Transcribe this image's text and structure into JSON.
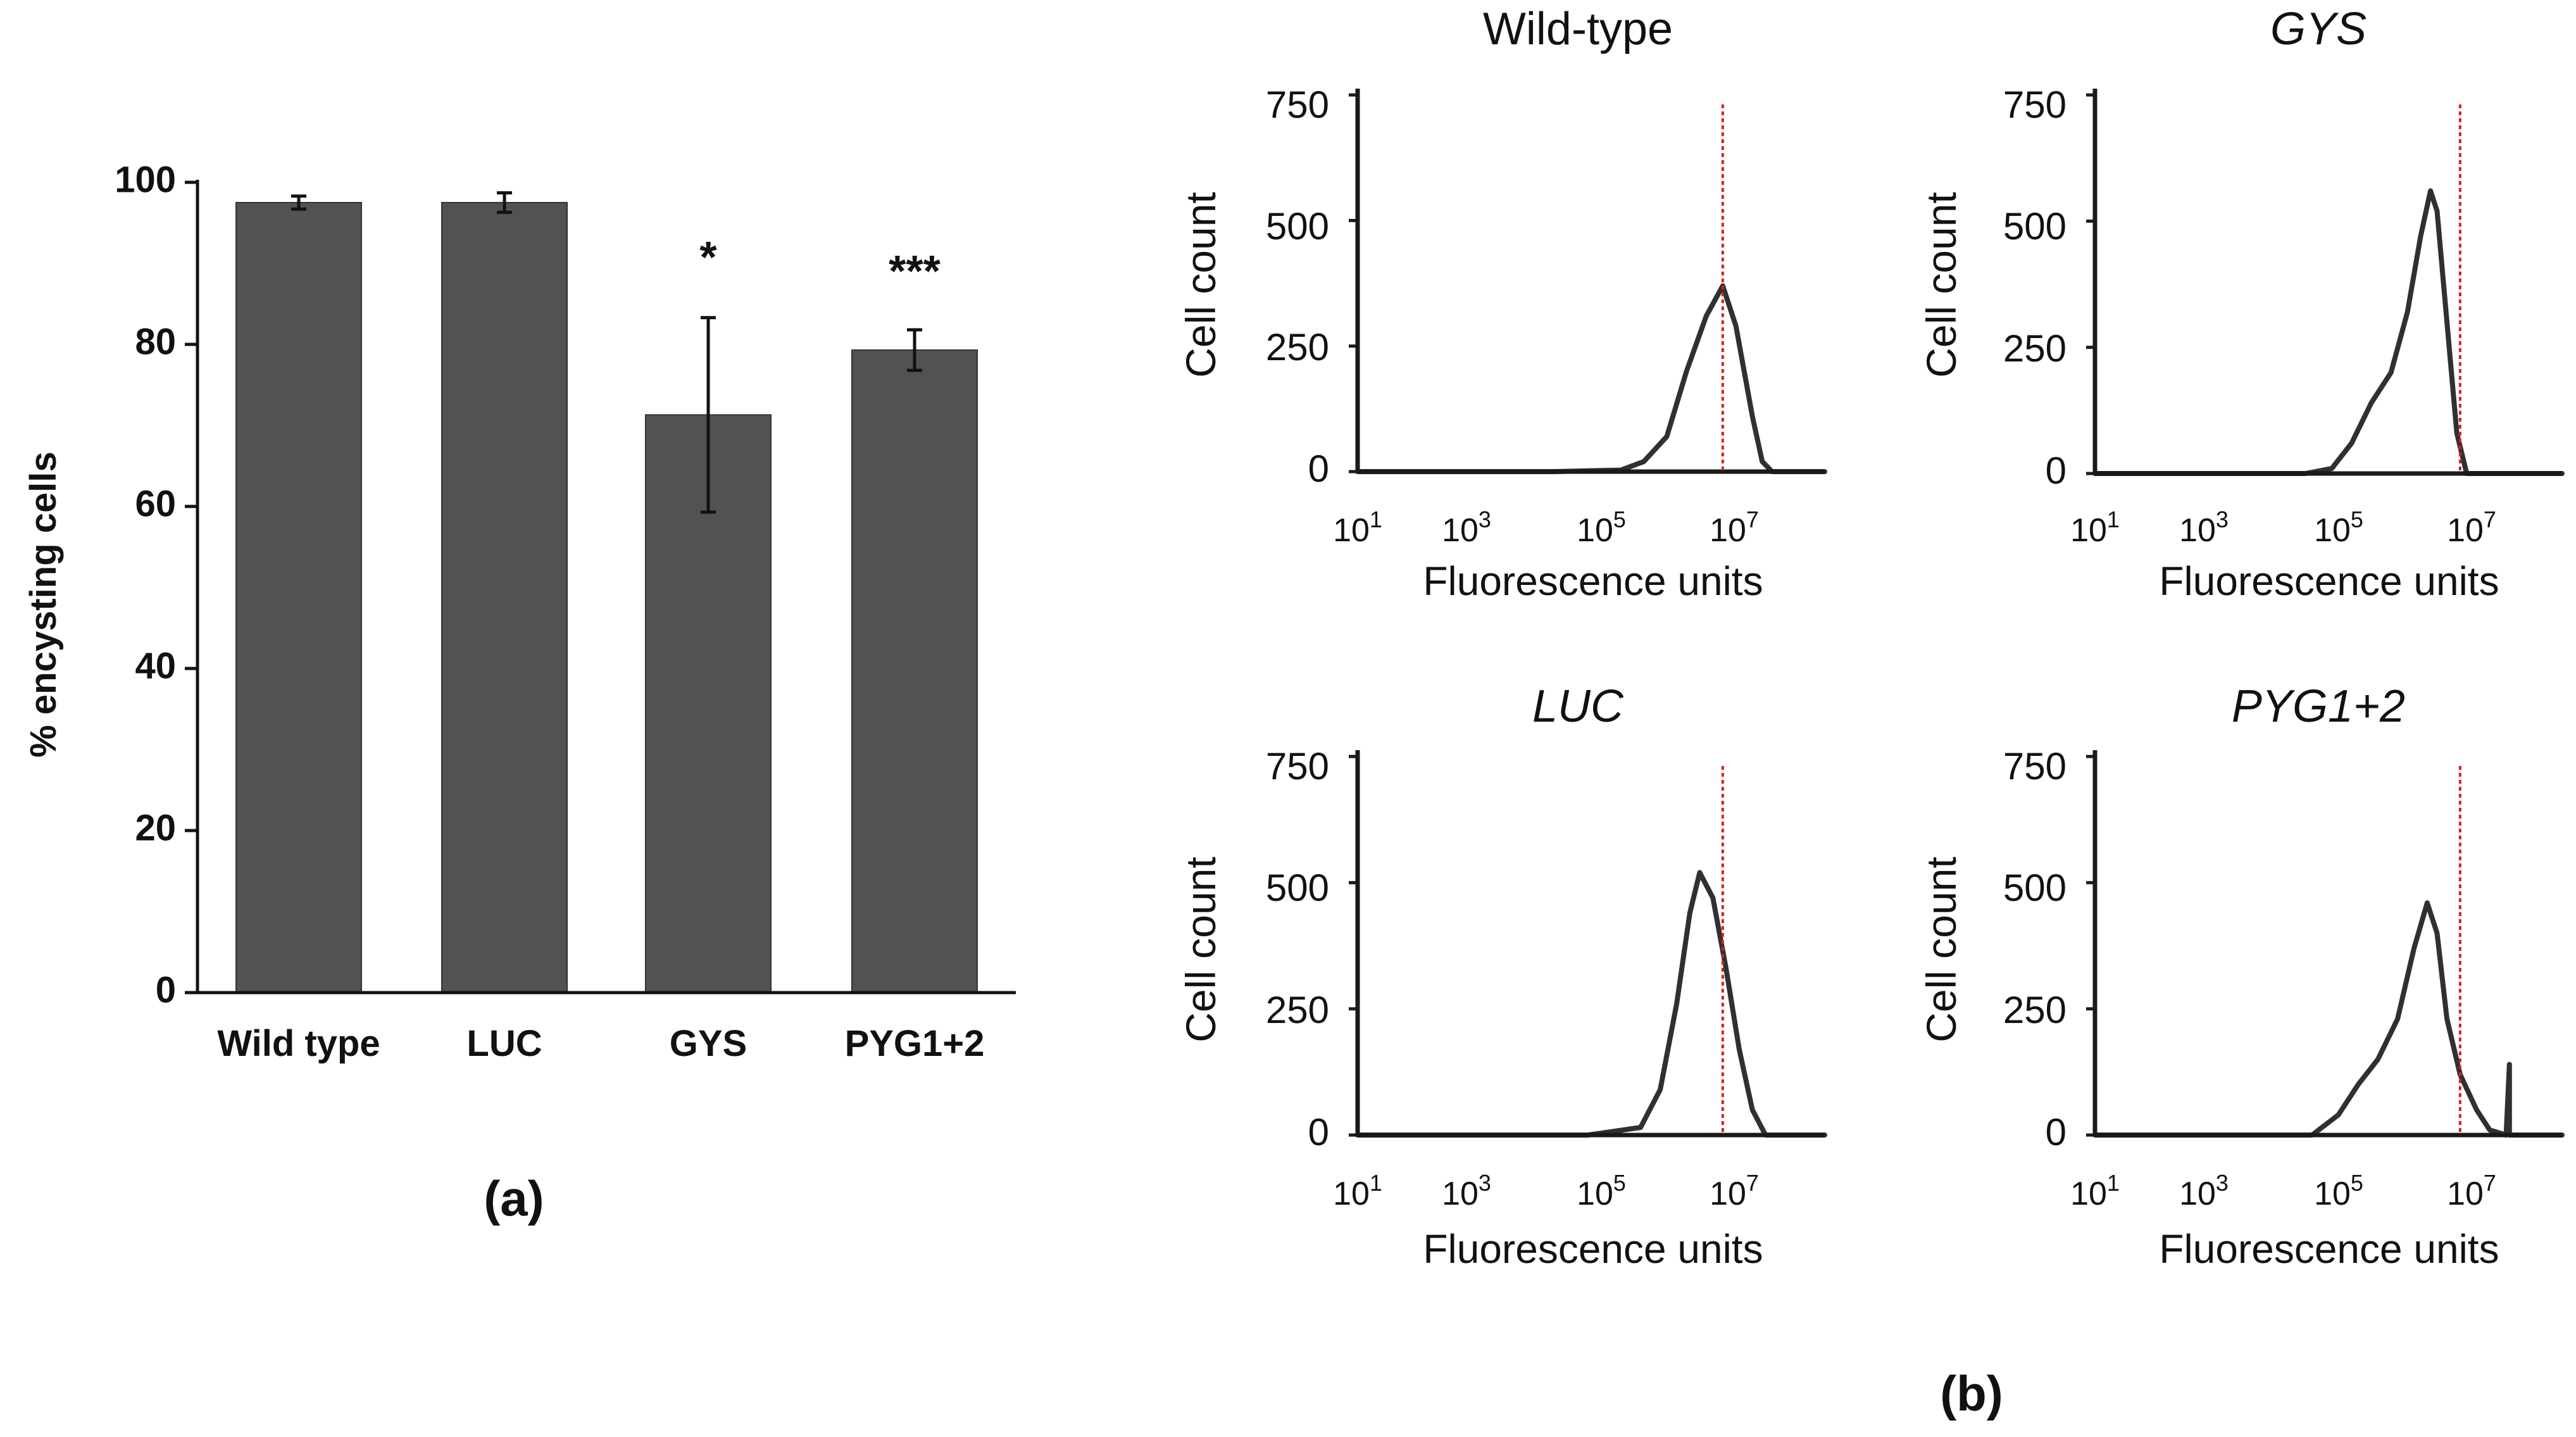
{
  "colors": {
    "bar_fill": "#515254",
    "ink": "#111111",
    "threshold": "#d62020",
    "histogram": "#1a1a1a"
  },
  "panel_a": {
    "label": "(a)",
    "chart_data": {
      "type": "bar",
      "title": "",
      "xlabel": "",
      "ylabel": "% encysting cells",
      "ylim": [
        0,
        100
      ],
      "yticks": [
        0,
        20,
        40,
        60,
        80,
        100
      ],
      "ytick_labels": [
        "0",
        "20",
        "40",
        "60",
        "80",
        "100"
      ],
      "categories": [
        "Wild type",
        "LUC",
        "GYS",
        "PYG1+2"
      ],
      "values": [
        97.5,
        97.5,
        71.3,
        79.3
      ],
      "errors": [
        0.8,
        1.2,
        12.0,
        2.5
      ],
      "significance": [
        "",
        "",
        "*",
        "***"
      ]
    }
  },
  "panel_b": {
    "label": "(b)",
    "chart_data": [
      {
        "type": "line",
        "title": "Wild-type",
        "title_italic": false,
        "xlabel": "Fluorescence units",
        "ylabel": "Cell count",
        "xscale": "log10",
        "xlim_log10": [
          1,
          8.1
        ],
        "ylim": [
          0,
          750
        ],
        "yticks": [
          0,
          250,
          500,
          750
        ],
        "ytick_labels": [
          "0",
          "250",
          "500",
          "750"
        ],
        "xtick_exponents": [
          "1",
          "3",
          "5",
          "7"
        ],
        "xtick_base": "10",
        "threshold_log10": 6.55,
        "x_log10": [
          1.0,
          3.0,
          4.0,
          5.0,
          5.35,
          5.7,
          6.0,
          6.3,
          6.55,
          6.75,
          7.0,
          7.15,
          7.3,
          8.1
        ],
        "y": [
          0,
          0,
          0,
          3,
          20,
          70,
          200,
          310,
          370,
          290,
          110,
          20,
          0,
          0
        ]
      },
      {
        "type": "line",
        "title": "GYS",
        "title_italic": true,
        "xlabel": "Fluorescence units",
        "ylabel": "Cell count",
        "xscale": "log10",
        "xlim_log10": [
          1,
          8.1
        ],
        "ylim": [
          0,
          750
        ],
        "yticks": [
          0,
          250,
          500,
          750
        ],
        "ytick_labels": [
          "0",
          "250",
          "500",
          "750"
        ],
        "xtick_exponents": [
          "1",
          "3",
          "5",
          "7"
        ],
        "xtick_base": "10",
        "threshold_log10": 6.55,
        "x_log10": [
          1.0,
          3.0,
          4.2,
          4.6,
          4.9,
          5.2,
          5.5,
          5.75,
          5.95,
          6.1,
          6.2,
          6.35,
          6.5,
          6.65,
          8.1
        ],
        "y": [
          0,
          0,
          0,
          10,
          60,
          140,
          200,
          320,
          470,
          560,
          520,
          300,
          80,
          0,
          0
        ]
      },
      {
        "type": "line",
        "title": "LUC",
        "title_italic": true,
        "xlabel": "Fluorescence units",
        "ylabel": "Cell count",
        "xscale": "log10",
        "xlim_log10": [
          1,
          8.1
        ],
        "ylim": [
          0,
          750
        ],
        "yticks": [
          0,
          250,
          500,
          750
        ],
        "ytick_labels": [
          "0",
          "250",
          "500",
          "750"
        ],
        "xtick_exponents": [
          "1",
          "3",
          "5",
          "7"
        ],
        "xtick_base": "10",
        "threshold_log10": 6.55,
        "x_log10": [
          1.0,
          3.0,
          4.5,
          5.3,
          5.6,
          5.85,
          6.05,
          6.2,
          6.4,
          6.6,
          6.8,
          7.0,
          7.2,
          8.1
        ],
        "y": [
          0,
          0,
          0,
          15,
          90,
          260,
          440,
          520,
          470,
          330,
          170,
          50,
          0,
          0
        ]
      },
      {
        "type": "line",
        "title": "PYG1+2",
        "title_italic": true,
        "xlabel": "Fluorescence units",
        "ylabel": "Cell count",
        "xscale": "log10",
        "xlim_log10": [
          1,
          8.1
        ],
        "ylim": [
          0,
          750
        ],
        "yticks": [
          0,
          250,
          500,
          750
        ],
        "ytick_labels": [
          "0",
          "250",
          "500",
          "750"
        ],
        "xtick_exponents": [
          "1",
          "3",
          "5",
          "7"
        ],
        "xtick_base": "10",
        "threshold_log10": 6.55,
        "x_log10": [
          1.0,
          3.0,
          4.3,
          4.7,
          5.0,
          5.3,
          5.6,
          5.85,
          6.05,
          6.2,
          6.35,
          6.55,
          6.8,
          7.0,
          7.25,
          7.3,
          7.3,
          7.35,
          8.1
        ],
        "y": [
          0,
          0,
          0,
          40,
          100,
          150,
          230,
          370,
          460,
          400,
          230,
          120,
          50,
          10,
          0,
          140,
          0,
          0,
          0
        ]
      }
    ]
  }
}
